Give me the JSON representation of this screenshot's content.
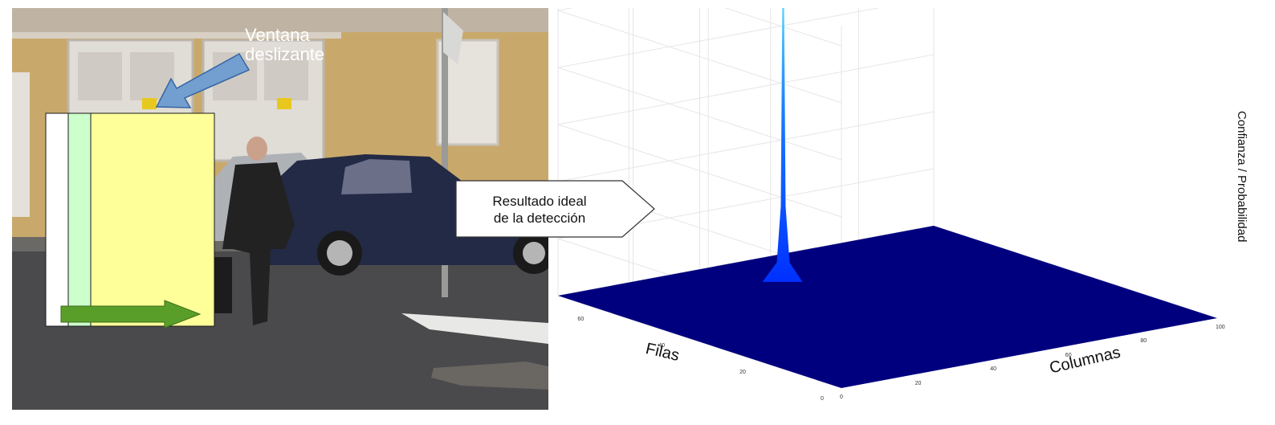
{
  "photo": {
    "annotation": {
      "line1": "Ventana",
      "line2": "deslizante"
    },
    "colors": {
      "window_fill": "#ffff99",
      "window_stripe": "#ccffcc",
      "arrow_green": "#5a9e2a",
      "arrow_blue": "#729fcf"
    }
  },
  "callout": {
    "line1": "Resultado ideal",
    "line2": "de la detección"
  },
  "chart_data": {
    "type": "surface",
    "xlabel": "Columnas",
    "ylabel": "Filas",
    "zlabel": "Confianza / Probabilidad",
    "x_ticks": [
      "0",
      "20",
      "40",
      "60",
      "80",
      "100"
    ],
    "y_ticks": [
      "0",
      "20",
      "40",
      "60"
    ],
    "xlim": [
      0,
      100
    ],
    "ylim": [
      0,
      70
    ],
    "peak": {
      "x": 47,
      "y": 58,
      "z": 1.0
    },
    "base_value": 0,
    "surface_color": "#00007f",
    "peak_color": "#38c8ff",
    "grid": true
  }
}
